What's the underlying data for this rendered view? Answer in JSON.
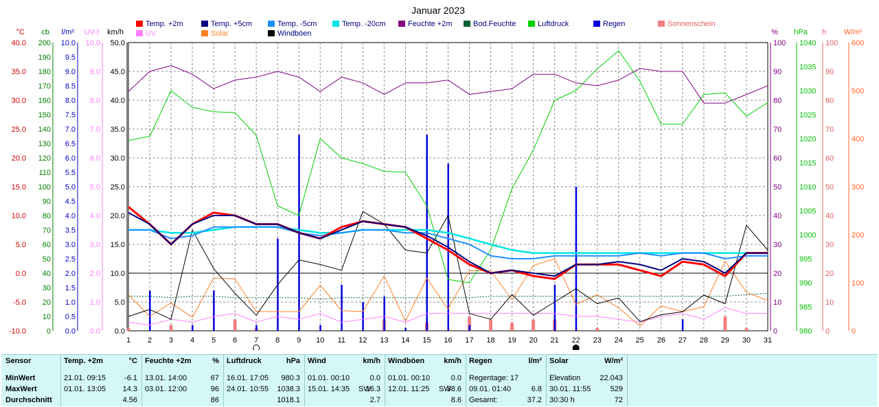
{
  "title": "Januar 2023",
  "axes": {
    "left": [
      {
        "unit": "°C",
        "color": "#d00000",
        "labels": [
          "40.0",
          "35.0",
          "30.0",
          "25.0",
          "20.0",
          "15.0",
          "10.0",
          "5.0",
          "0.0",
          "-5.0",
          "-10.0"
        ]
      },
      {
        "unit": "cb",
        "color": "#008000",
        "labels": [
          "200",
          "190",
          "180",
          "170",
          "160",
          "150",
          "140",
          "130",
          "120",
          "110",
          "100",
          "90",
          "80",
          "70",
          "60",
          "50",
          "40",
          "30",
          "20",
          "10",
          "0"
        ]
      },
      {
        "unit": "l/m²",
        "color": "#0000c0",
        "labels": [
          "10.0",
          "9.5",
          "9.0",
          "8.5",
          "8.0",
          "7.5",
          "7.0",
          "6.5",
          "6.0",
          "5.5",
          "5.0",
          "4.5",
          "4.0",
          "3.5",
          "3.0",
          "2.5",
          "2.0",
          "1.5",
          "1.0",
          "0.5",
          "0.0"
        ]
      },
      {
        "unit": "UV-I",
        "color": "#ff80ff",
        "labels": [
          "10.0",
          "9.0",
          "8.0",
          "7.0",
          "6.0",
          "5.0",
          "4.0",
          "3.0",
          "2.0",
          "1.0",
          "0.0"
        ]
      },
      {
        "unit": "km/h",
        "color": "#000000",
        "labels": [
          "50.0",
          "45.0",
          "40.0",
          "35.0",
          "30.0",
          "25.0",
          "20.0",
          "15.0",
          "10.0",
          "5.0",
          "0.0"
        ]
      }
    ],
    "right": [
      {
        "unit": "%",
        "color": "#800080",
        "labels": [
          "100",
          "90",
          "80",
          "70",
          "60",
          "50",
          "40",
          "30",
          "20",
          "10",
          "0"
        ]
      },
      {
        "unit": "hPa",
        "color": "#00c000",
        "labels": [
          "1040",
          "1035",
          "1030",
          "1025",
          "1020",
          "1015",
          "1010",
          "1005",
          "1000",
          "995",
          "990",
          "985",
          "980"
        ]
      },
      {
        "unit": "h",
        "color": "#e06060",
        "labels": [
          "100",
          "90",
          "80",
          "70",
          "60",
          "50",
          "40",
          "30",
          "20",
          "10",
          "0"
        ]
      },
      {
        "unit": "W/m²",
        "color": "#ff6020",
        "labels": [
          "600",
          "500",
          "400",
          "300",
          "200",
          "100",
          "0"
        ]
      }
    ],
    "x_labels": [
      "1",
      "2",
      "3",
      "4",
      "5",
      "6",
      "7",
      "8",
      "9",
      "10",
      "11",
      "12",
      "13",
      "14",
      "15",
      "16",
      "17",
      "18",
      "19",
      "20",
      "21",
      "22",
      "23",
      "24",
      "25",
      "26",
      "27",
      "28",
      "29",
      "30",
      "31"
    ]
  },
  "legend": [
    {
      "label": "Temp. +2m",
      "color": "#ff0000"
    },
    {
      "label": "Temp. +5cm",
      "color": "#000080"
    },
    {
      "label": "Temp. -5cm",
      "color": "#1e90ff"
    },
    {
      "label": "Temp. -20cm",
      "color": "#00e5e5"
    },
    {
      "label": "Feuchte +2m",
      "color": "#800080"
    },
    {
      "label": "Bod.Feuchte",
      "color": "#006030"
    },
    {
      "label": "Luftdruck",
      "color": "#00d000"
    },
    {
      "label": "Regen",
      "color": "#0000e0"
    },
    {
      "label": "Sonnenschein",
      "color": "#f08080"
    },
    {
      "label": "UV",
      "color": "#ff80ff"
    },
    {
      "label": "Solar",
      "color": "#ff7f27"
    },
    {
      "label": "Windböen",
      "color": "#000000"
    }
  ],
  "chart_data": {
    "type": "line",
    "title": "Januar 2023",
    "x": [
      1,
      2,
      3,
      4,
      5,
      6,
      7,
      8,
      9,
      10,
      11,
      12,
      13,
      14,
      15,
      16,
      17,
      18,
      19,
      20,
      21,
      22,
      23,
      24,
      25,
      26,
      27,
      28,
      29,
      30,
      31
    ],
    "series": [
      {
        "name": "Temp. +2m",
        "unit": "°C",
        "values": [
          11.5,
          8.5,
          5.0,
          8.5,
          10.5,
          10.0,
          8.5,
          8.5,
          7.0,
          6.0,
          8.0,
          9.0,
          8.5,
          8.0,
          6.0,
          4.0,
          1.5,
          0.0,
          0.5,
          -0.5,
          -1.0,
          1.5,
          1.5,
          1.5,
          0.5,
          -0.5,
          2.0,
          1.5,
          -0.5,
          3.5,
          3.5
        ]
      },
      {
        "name": "Temp. +5cm",
        "unit": "°C",
        "values": [
          10.5,
          8.5,
          5.0,
          8.5,
          10.0,
          10.0,
          8.5,
          8.5,
          7.0,
          6.0,
          7.5,
          9.0,
          8.5,
          8.0,
          6.5,
          4.5,
          2.0,
          0.0,
          0.5,
          0.0,
          -0.5,
          1.5,
          1.5,
          2.0,
          1.5,
          0.5,
          2.5,
          2.0,
          0.0,
          3.5,
          3.5
        ]
      },
      {
        "name": "Temp. -5cm",
        "unit": "°C",
        "values": [
          7.5,
          7.5,
          6.0,
          6.5,
          8.0,
          8.0,
          8.0,
          8.0,
          7.0,
          6.5,
          7.0,
          7.5,
          7.5,
          7.0,
          7.0,
          6.0,
          5.0,
          3.0,
          2.5,
          2.5,
          3.0,
          3.0,
          3.0,
          3.0,
          3.5,
          3.0,
          3.5,
          3.5,
          2.5,
          3.0,
          3.0
        ]
      },
      {
        "name": "Temp. -20cm",
        "unit": "°C",
        "values": [
          7.5,
          7.5,
          7.0,
          7.0,
          7.5,
          8.0,
          8.0,
          8.0,
          7.5,
          7.0,
          7.0,
          7.5,
          7.5,
          7.5,
          7.5,
          7.0,
          6.0,
          5.0,
          4.0,
          3.5,
          3.5,
          3.5,
          3.5,
          3.5,
          3.5,
          3.5,
          3.5,
          3.5,
          3.5,
          3.5,
          3.5
        ]
      },
      {
        "name": "Feuchte +2m",
        "unit": "%",
        "values": [
          83,
          90,
          92,
          89,
          84,
          87,
          88,
          90,
          88,
          83,
          88,
          86,
          82,
          86,
          86,
          87,
          82,
          83,
          84,
          89,
          89,
          86,
          85,
          87,
          91,
          90,
          90,
          79,
          79,
          82,
          85
        ]
      },
      {
        "name": "Bod.Feuchte",
        "unit": "cb",
        "values": [
          24,
          24,
          23,
          24,
          24,
          23,
          23,
          23,
          23,
          22,
          23,
          23,
          23,
          23,
          23,
          23,
          23,
          24,
          24,
          24,
          24,
          24,
          24,
          24,
          24,
          24,
          24,
          24,
          24,
          25,
          26
        ]
      },
      {
        "name": "Luftdruck",
        "unit": "hPa",
        "values": [
          1019.6,
          1020.5,
          1030.0,
          1026.5,
          1025.6,
          1025.4,
          1020.7,
          1006.0,
          1004.0,
          1020.0,
          1016.0,
          1014.8,
          1013.2,
          1013.0,
          1006.0,
          990.7,
          990.0,
          996.8,
          1009.6,
          1017.6,
          1028.0,
          1030.0,
          1034.5,
          1038.3,
          1032.0,
          1023.0,
          1023.0,
          1029.2,
          1029.5,
          1024.7,
          1027.5
        ]
      },
      {
        "name": "Regen",
        "unit": "l/m²",
        "values": [
          0,
          1.4,
          0,
          0.2,
          1.4,
          0,
          0.2,
          3.2,
          6.8,
          0.2,
          1.6,
          1.0,
          1.2,
          0.1,
          6.8,
          5.8,
          0.2,
          0,
          0,
          0,
          1.6,
          5.0,
          0,
          0,
          0,
          0,
          0.4,
          0,
          0,
          0,
          0
        ]
      },
      {
        "name": "Sonnenschein",
        "unit": "h",
        "values": [
          1,
          0,
          2,
          0,
          0,
          4,
          1,
          0,
          0,
          0,
          0,
          0,
          4,
          0,
          3,
          0,
          5,
          4,
          3,
          4,
          4,
          0,
          1,
          0,
          0,
          0,
          0,
          0,
          5,
          1,
          0
        ]
      },
      {
        "name": "UV",
        "unit": "UV-I",
        "values": [
          0.3,
          0.2,
          0.4,
          0.3,
          0.5,
          0.6,
          0.3,
          0.5,
          0.4,
          0.6,
          0.3,
          0.4,
          0.5,
          0.3,
          0.6,
          0.6,
          0.6,
          0.6,
          0.6,
          0.6,
          0.6,
          0.5,
          0.5,
          0.4,
          0.3,
          0.5,
          0.6,
          0.4,
          0.8,
          0.6,
          0.6
        ]
      },
      {
        "name": "Solar",
        "unit": "W/m²",
        "values": [
          75,
          30,
          58,
          28,
          110,
          108,
          40,
          40,
          40,
          95,
          42,
          40,
          114,
          20,
          110,
          45,
          125,
          125,
          65,
          136,
          150,
          55,
          75,
          48,
          10,
          52,
          40,
          50,
          145,
          80,
          63
        ]
      },
      {
        "name": "Windböen",
        "unit": "km/h",
        "values": [
          2.5,
          3.7,
          2.0,
          17.5,
          10.8,
          6.5,
          2.7,
          8.0,
          12.3,
          11.5,
          10.5,
          20.7,
          18.5,
          14.0,
          13.5,
          20.0,
          3.0,
          2.0,
          6.3,
          2.7,
          5.0,
          7.3,
          4.7,
          5.7,
          1.6,
          2.8,
          3.3,
          6.2,
          4.7,
          18.3,
          14.0
        ]
      }
    ],
    "grid": true
  },
  "moon_days": [
    {
      "day": "7",
      "phase": "full"
    },
    {
      "day": "22",
      "phase": "new"
    }
  ],
  "stats": {
    "row_labels": {
      "sensor": "Sensor",
      "min": "MinWert",
      "max": "MaxWert",
      "avg": "Durchschnitt"
    },
    "temp": {
      "title": "Temp. +2m",
      "unit": "°C",
      "min_date": "21.01. 09:15",
      "min_val": "-6.1",
      "max_date": "01.01. 13:05",
      "max_val": "14.3",
      "avg_val": "4.56"
    },
    "humidity": {
      "title": "Feuchte +2m",
      "unit": "%",
      "min_date": "13.01. 14:00",
      "min_val": "67",
      "max_date": "03.01. 12:00",
      "max_val": "96",
      "avg_val": "86"
    },
    "pressure": {
      "title": "Luftdruck",
      "unit": "hPa",
      "min_date": "16.01. 17:05",
      "min_val": "980.3",
      "max_date": "24.01. 10:55",
      "max_val": "1038.3",
      "avg_val": "1018.1"
    },
    "wind": {
      "title": "Wind",
      "unit": "km/h",
      "min_date": "01.01. 00:10",
      "min_val": "0.0",
      "max_date": "15.01. 14:35",
      "max_dir": "SW",
      "max_val": "16.3",
      "avg_val": "2.7"
    },
    "gusts": {
      "title": "Windböen",
      "unit": "km/h",
      "min_date": "01.01. 00:10",
      "min_val": "0.0",
      "max_date": "12.01. 11:25",
      "max_dir": "SW",
      "max_val": "38.6",
      "avg_val": "8.6"
    },
    "rain": {
      "title": "Regen",
      "unit": "l/m²",
      "days_label": "Regentage: 17",
      "max_date": "09.01. 01:40",
      "max_val": "6.8",
      "total_label": "Gesamt:",
      "total_val": "37.2"
    },
    "solar": {
      "title": "Solar",
      "unit": "W/m²",
      "elev_label": "Elevation",
      "elev_val": "22.043",
      "max_date": "30.01. 11:55",
      "max_val": "529",
      "avg_label": "30:30 h",
      "avg_val": "72"
    }
  }
}
